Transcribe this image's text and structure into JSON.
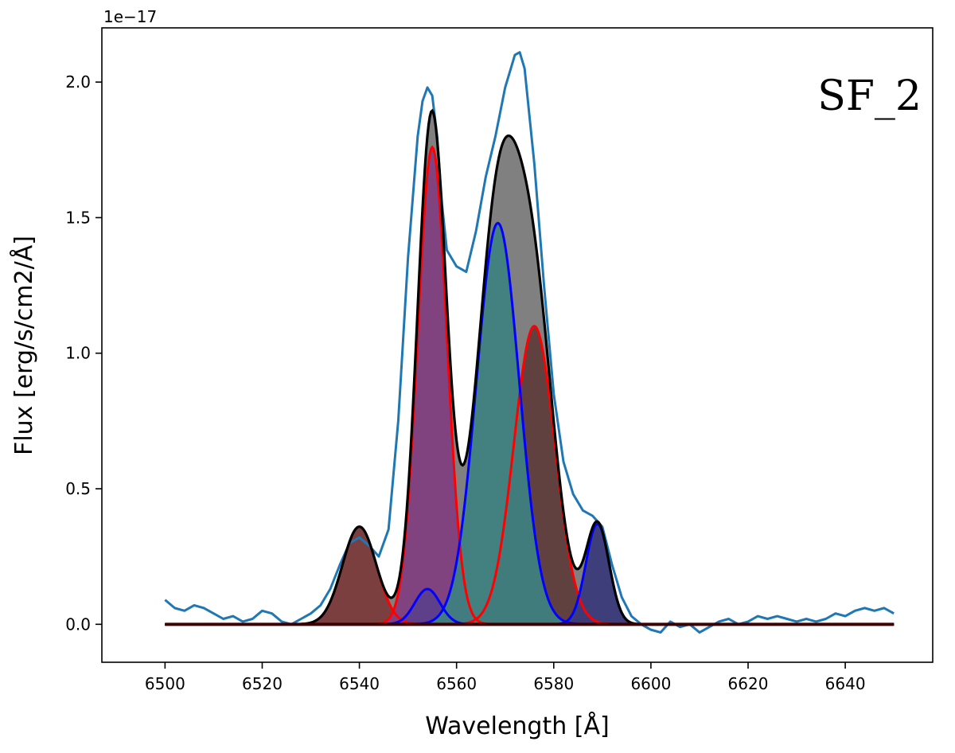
{
  "chart_data": {
    "type": "line",
    "xlabel": "Wavelength [Å]",
    "ylabel": "Flux [erg/s/cm2/Å]",
    "offset_text": "1e−17",
    "annotation": "SF_2",
    "xlim": [
      6487,
      6658
    ],
    "ylim": [
      -0.14,
      2.2
    ],
    "x_ticks": [
      6500,
      6520,
      6540,
      6560,
      6580,
      6600,
      6620,
      6640
    ],
    "x_tick_labels": [
      "6500",
      "6520",
      "6540",
      "6560",
      "6580",
      "6600",
      "6620",
      "6640"
    ],
    "y_ticks": [
      0.0,
      0.5,
      1.0,
      1.5,
      2.0
    ],
    "y_tick_labels": [
      "0.0",
      "0.5",
      "1.0",
      "1.5",
      "2.0"
    ],
    "grid": false,
    "x_range": [
      6500,
      6650
    ],
    "components": [
      {
        "kind": "narrow",
        "center": 6540.0,
        "amplitude": 0.36,
        "sigma": 3.5,
        "fill": "#7a3b3b",
        "stroke": "#ff0000"
      },
      {
        "kind": "narrow",
        "center": 6555.0,
        "amplitude": 1.76,
        "sigma": 3.0,
        "fill": "#7f3f7f",
        "stroke": "#ff0000"
      },
      {
        "kind": "narrow",
        "center": 6576.0,
        "amplitude": 1.1,
        "sigma": 4.2,
        "fill": "#5f3c3c",
        "stroke": "#ff0000"
      },
      {
        "kind": "broad",
        "center": 6554.0,
        "amplitude": 0.13,
        "sigma": 2.6,
        "fill": "#5b3f8a",
        "stroke": "#0000ff"
      },
      {
        "kind": "broad",
        "center": 6568.5,
        "amplitude": 1.48,
        "sigma": 4.4,
        "fill": "#3f7f7f",
        "stroke": "#0000ff"
      },
      {
        "kind": "broad",
        "center": 6589.0,
        "amplitude": 0.37,
        "sigma": 2.4,
        "fill": "#3a3a7a",
        "stroke": "#0000ff"
      }
    ],
    "observed_spectrum": {
      "color": "#1f77b4",
      "x": [
        6500,
        6502,
        6504,
        6506,
        6508,
        6510,
        6512,
        6514,
        6516,
        6518,
        6520,
        6522,
        6524,
        6526,
        6528,
        6530,
        6532,
        6534,
        6536,
        6538,
        6540,
        6542,
        6544,
        6546,
        6548,
        6550,
        6552,
        6553,
        6554,
        6555,
        6556,
        6557,
        6558,
        6560,
        6562,
        6564,
        6566,
        6568,
        6570,
        6572,
        6573,
        6574,
        6576,
        6578,
        6580,
        6582,
        6584,
        6586,
        6588,
        6590,
        6592,
        6594,
        6596,
        6598,
        6600,
        6602,
        6604,
        6606,
        6608,
        6610,
        6612,
        6614,
        6616,
        6618,
        6620,
        6622,
        6624,
        6626,
        6628,
        6630,
        6632,
        6634,
        6636,
        6638,
        6640,
        6642,
        6644,
        6646,
        6648,
        6650
      ],
      "y": [
        0.09,
        0.06,
        0.05,
        0.07,
        0.06,
        0.04,
        0.02,
        0.03,
        0.01,
        0.02,
        0.05,
        0.04,
        0.01,
        0.0,
        0.02,
        0.04,
        0.07,
        0.13,
        0.22,
        0.3,
        0.32,
        0.29,
        0.25,
        0.35,
        0.75,
        1.35,
        1.8,
        1.93,
        1.98,
        1.95,
        1.8,
        1.55,
        1.38,
        1.32,
        1.3,
        1.45,
        1.65,
        1.8,
        1.98,
        2.1,
        2.11,
        2.05,
        1.7,
        1.25,
        0.85,
        0.6,
        0.48,
        0.42,
        0.4,
        0.36,
        0.22,
        0.1,
        0.03,
        0.0,
        -0.02,
        -0.03,
        0.01,
        -0.01,
        0.0,
        -0.03,
        -0.01,
        0.01,
        0.02,
        0.0,
        0.01,
        0.03,
        0.02,
        0.03,
        0.02,
        0.01,
        0.02,
        0.01,
        0.02,
        0.04,
        0.03,
        0.05,
        0.06,
        0.05,
        0.06,
        0.04
      ]
    },
    "model_total": {
      "color": "#000000",
      "fill": "#808080"
    },
    "baseline": {
      "value": 0.0,
      "color": "#3d0000"
    }
  }
}
